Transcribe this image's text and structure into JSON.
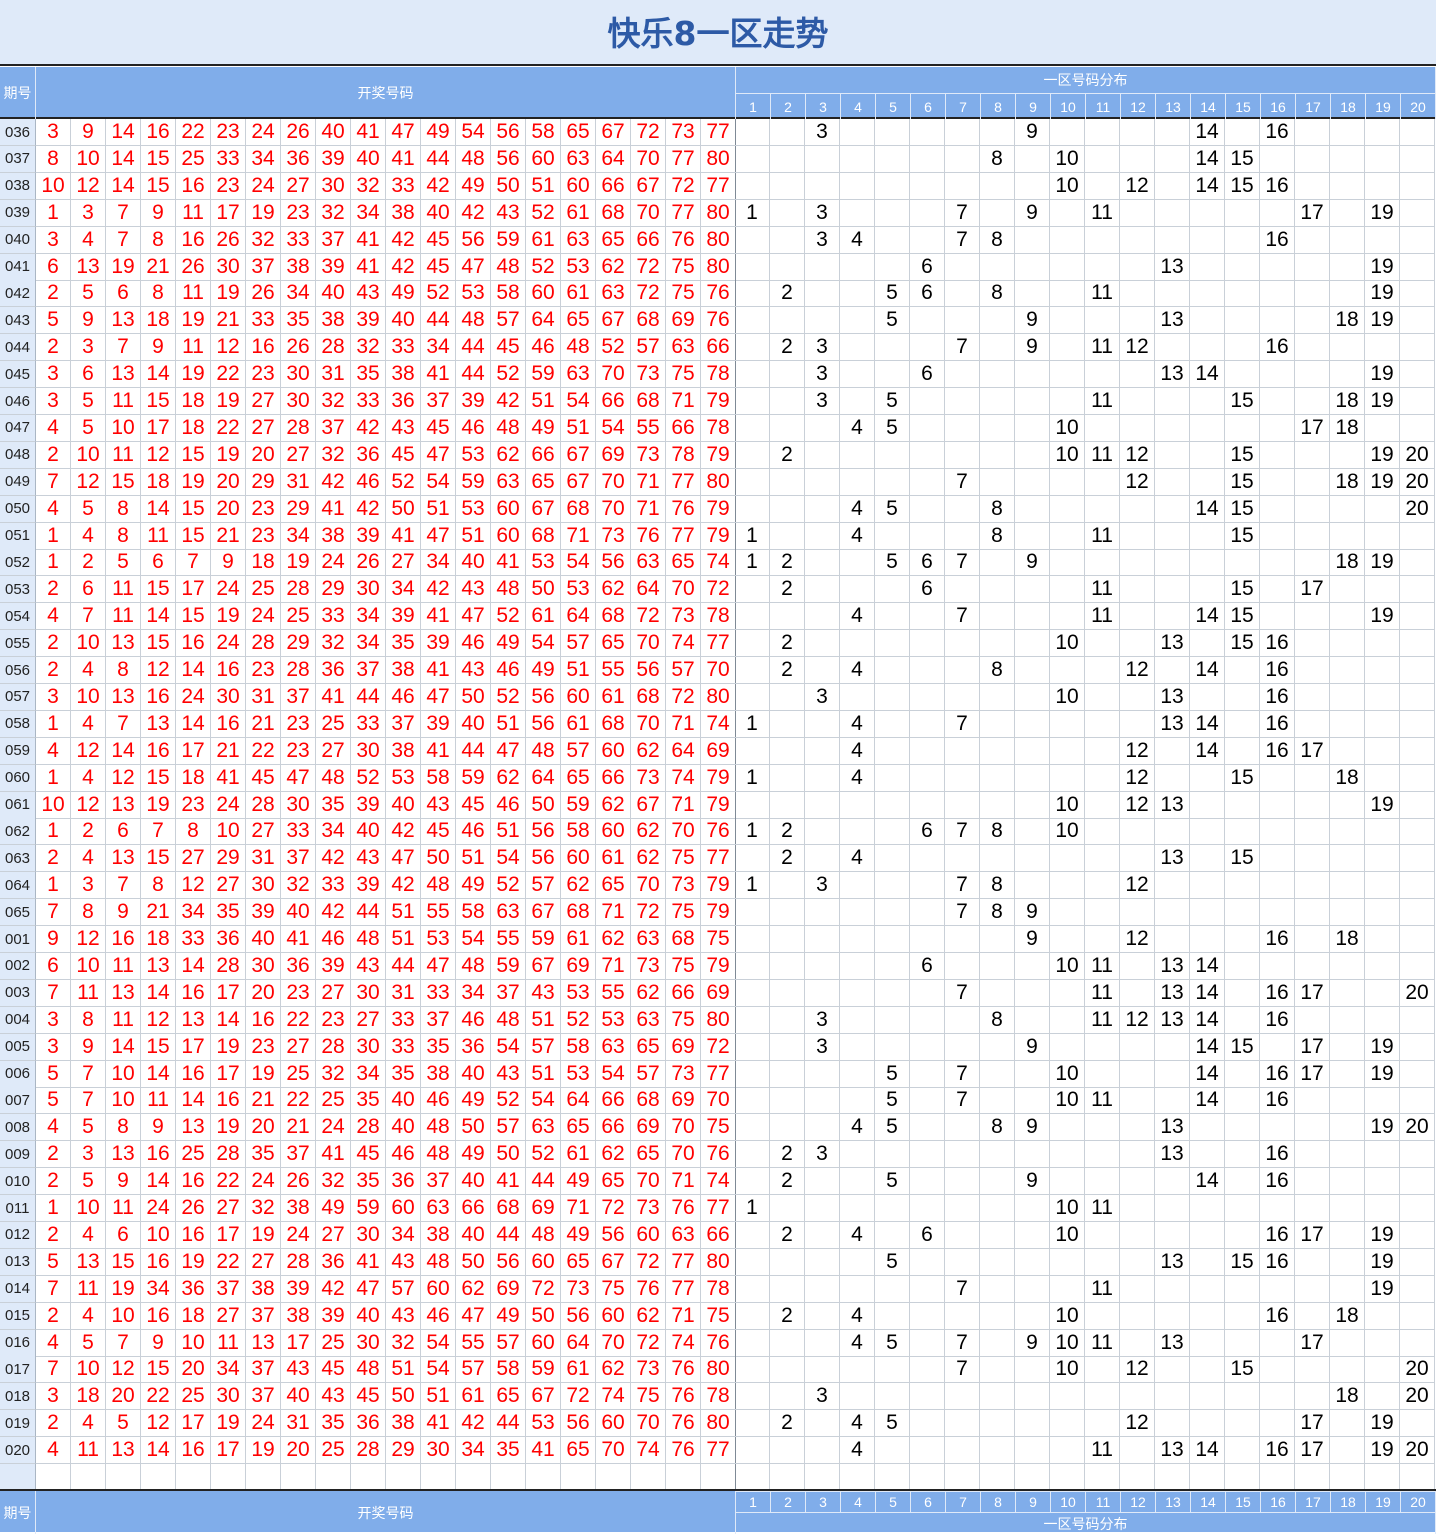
{
  "title": "快乐8一区走势",
  "header": {
    "period_label": "期号",
    "draw_label": "开奖号码",
    "dist_label": "一区号码分布",
    "dist_columns": [
      "1",
      "2",
      "3",
      "4",
      "5",
      "6",
      "7",
      "8",
      "9",
      "10",
      "11",
      "12",
      "13",
      "14",
      "15",
      "16",
      "17",
      "18",
      "19",
      "20"
    ]
  },
  "colors": {
    "draw_number": "#ff0000",
    "dist_number": "#000000",
    "header_bg": "#80adea",
    "title_text": "#2d5aa6",
    "title_bg": "#dfeaf9"
  },
  "rows": [
    {
      "period": "036",
      "numbers": [
        3,
        9,
        14,
        16,
        22,
        23,
        24,
        26,
        40,
        41,
        47,
        49,
        54,
        56,
        58,
        65,
        67,
        72,
        73,
        77
      ]
    },
    {
      "period": "037",
      "numbers": [
        8,
        10,
        14,
        15,
        25,
        33,
        34,
        36,
        39,
        40,
        41,
        44,
        48,
        56,
        60,
        63,
        64,
        70,
        77,
        80
      ]
    },
    {
      "period": "038",
      "numbers": [
        10,
        12,
        14,
        15,
        16,
        23,
        24,
        27,
        30,
        32,
        33,
        42,
        49,
        50,
        51,
        60,
        66,
        67,
        72,
        77
      ]
    },
    {
      "period": "039",
      "numbers": [
        1,
        3,
        7,
        9,
        11,
        17,
        19,
        23,
        32,
        34,
        38,
        40,
        42,
        43,
        52,
        61,
        68,
        70,
        77,
        80
      ]
    },
    {
      "period": "040",
      "numbers": [
        3,
        4,
        7,
        8,
        16,
        26,
        32,
        33,
        37,
        41,
        42,
        45,
        56,
        59,
        61,
        63,
        65,
        66,
        76,
        80
      ]
    },
    {
      "period": "041",
      "numbers": [
        6,
        13,
        19,
        21,
        26,
        30,
        37,
        38,
        39,
        41,
        42,
        45,
        47,
        48,
        52,
        53,
        62,
        72,
        75,
        80
      ]
    },
    {
      "period": "042",
      "numbers": [
        2,
        5,
        6,
        8,
        11,
        19,
        26,
        34,
        40,
        43,
        49,
        52,
        53,
        58,
        60,
        61,
        63,
        72,
        75,
        76
      ]
    },
    {
      "period": "043",
      "numbers": [
        5,
        9,
        13,
        18,
        19,
        21,
        33,
        35,
        38,
        39,
        40,
        44,
        48,
        57,
        64,
        65,
        67,
        68,
        69,
        76
      ]
    },
    {
      "period": "044",
      "numbers": [
        2,
        3,
        7,
        9,
        11,
        12,
        16,
        26,
        28,
        32,
        33,
        34,
        44,
        45,
        46,
        48,
        52,
        57,
        63,
        66
      ]
    },
    {
      "period": "045",
      "numbers": [
        3,
        6,
        13,
        14,
        19,
        22,
        23,
        30,
        31,
        35,
        38,
        41,
        44,
        52,
        59,
        63,
        70,
        73,
        75,
        78
      ]
    },
    {
      "period": "046",
      "numbers": [
        3,
        5,
        11,
        15,
        18,
        19,
        27,
        30,
        32,
        33,
        36,
        37,
        39,
        42,
        51,
        54,
        66,
        68,
        71,
        79
      ]
    },
    {
      "period": "047",
      "numbers": [
        4,
        5,
        10,
        17,
        18,
        22,
        27,
        28,
        37,
        42,
        43,
        45,
        46,
        48,
        49,
        51,
        54,
        55,
        66,
        78
      ]
    },
    {
      "period": "048",
      "numbers": [
        2,
        10,
        11,
        12,
        15,
        19,
        20,
        27,
        32,
        36,
        45,
        47,
        53,
        62,
        66,
        67,
        69,
        73,
        78,
        79
      ]
    },
    {
      "period": "049",
      "numbers": [
        7,
        12,
        15,
        18,
        19,
        20,
        29,
        31,
        42,
        46,
        52,
        54,
        59,
        63,
        65,
        67,
        70,
        71,
        77,
        80
      ]
    },
    {
      "period": "050",
      "numbers": [
        4,
        5,
        8,
        14,
        15,
        20,
        23,
        29,
        41,
        42,
        50,
        51,
        53,
        60,
        67,
        68,
        70,
        71,
        76,
        79
      ]
    },
    {
      "period": "051",
      "numbers": [
        1,
        4,
        8,
        11,
        15,
        21,
        23,
        34,
        38,
        39,
        41,
        47,
        51,
        60,
        68,
        71,
        73,
        76,
        77,
        79
      ]
    },
    {
      "period": "052",
      "numbers": [
        1,
        2,
        5,
        6,
        7,
        9,
        18,
        19,
        24,
        26,
        27,
        34,
        40,
        41,
        53,
        54,
        56,
        63,
        65,
        74
      ]
    },
    {
      "period": "053",
      "numbers": [
        2,
        6,
        11,
        15,
        17,
        24,
        25,
        28,
        29,
        30,
        34,
        42,
        43,
        48,
        50,
        53,
        62,
        64,
        70,
        72
      ]
    },
    {
      "period": "054",
      "numbers": [
        4,
        7,
        11,
        14,
        15,
        19,
        24,
        25,
        33,
        34,
        39,
        41,
        47,
        52,
        61,
        64,
        68,
        72,
        73,
        78
      ]
    },
    {
      "period": "055",
      "numbers": [
        2,
        10,
        13,
        15,
        16,
        24,
        28,
        29,
        32,
        34,
        35,
        39,
        46,
        49,
        54,
        57,
        65,
        70,
        74,
        77
      ]
    },
    {
      "period": "056",
      "numbers": [
        2,
        4,
        8,
        12,
        14,
        16,
        23,
        28,
        36,
        37,
        38,
        41,
        43,
        46,
        49,
        51,
        55,
        56,
        57,
        70
      ]
    },
    {
      "period": "057",
      "numbers": [
        3,
        10,
        13,
        16,
        24,
        30,
        31,
        37,
        41,
        44,
        46,
        47,
        50,
        52,
        56,
        60,
        61,
        68,
        72,
        80
      ]
    },
    {
      "period": "058",
      "numbers": [
        1,
        4,
        7,
        13,
        14,
        16,
        21,
        23,
        25,
        33,
        37,
        39,
        40,
        51,
        56,
        61,
        68,
        70,
        71,
        74
      ]
    },
    {
      "period": "059",
      "numbers": [
        4,
        12,
        14,
        16,
        17,
        21,
        22,
        23,
        27,
        30,
        38,
        41,
        44,
        47,
        48,
        57,
        60,
        62,
        64,
        69
      ]
    },
    {
      "period": "060",
      "numbers": [
        1,
        4,
        12,
        15,
        18,
        41,
        45,
        47,
        48,
        52,
        53,
        58,
        59,
        62,
        64,
        65,
        66,
        73,
        74,
        79
      ]
    },
    {
      "period": "061",
      "numbers": [
        10,
        12,
        13,
        19,
        23,
        24,
        28,
        30,
        35,
        39,
        40,
        43,
        45,
        46,
        50,
        59,
        62,
        67,
        71,
        79
      ]
    },
    {
      "period": "062",
      "numbers": [
        1,
        2,
        6,
        7,
        8,
        10,
        27,
        33,
        34,
        40,
        42,
        45,
        46,
        51,
        56,
        58,
        60,
        62,
        70,
        76
      ]
    },
    {
      "period": "063",
      "numbers": [
        2,
        4,
        13,
        15,
        27,
        29,
        31,
        37,
        42,
        43,
        47,
        50,
        51,
        54,
        56,
        60,
        61,
        62,
        75,
        77
      ]
    },
    {
      "period": "064",
      "numbers": [
        1,
        3,
        7,
        8,
        12,
        27,
        30,
        32,
        33,
        39,
        42,
        48,
        49,
        52,
        57,
        62,
        65,
        70,
        73,
        79
      ]
    },
    {
      "period": "065",
      "numbers": [
        7,
        8,
        9,
        21,
        34,
        35,
        39,
        40,
        42,
        44,
        51,
        55,
        58,
        63,
        67,
        68,
        71,
        72,
        75,
        79
      ]
    },
    {
      "period": "001",
      "numbers": [
        9,
        12,
        16,
        18,
        33,
        36,
        40,
        41,
        46,
        48,
        51,
        53,
        54,
        55,
        59,
        61,
        62,
        63,
        68,
        75
      ]
    },
    {
      "period": "002",
      "numbers": [
        6,
        10,
        11,
        13,
        14,
        28,
        30,
        36,
        39,
        43,
        44,
        47,
        48,
        59,
        67,
        69,
        71,
        73,
        75,
        79
      ]
    },
    {
      "period": "003",
      "numbers": [
        7,
        11,
        13,
        14,
        16,
        17,
        20,
        23,
        27,
        30,
        31,
        33,
        34,
        37,
        43,
        53,
        55,
        62,
        66,
        69
      ]
    },
    {
      "period": "004",
      "numbers": [
        3,
        8,
        11,
        12,
        13,
        14,
        16,
        22,
        23,
        27,
        33,
        37,
        46,
        48,
        51,
        52,
        53,
        63,
        75,
        80
      ]
    },
    {
      "period": "005",
      "numbers": [
        3,
        9,
        14,
        15,
        17,
        19,
        23,
        27,
        28,
        30,
        33,
        35,
        36,
        54,
        57,
        58,
        63,
        65,
        69,
        72
      ]
    },
    {
      "period": "006",
      "numbers": [
        5,
        7,
        10,
        14,
        16,
        17,
        19,
        25,
        32,
        34,
        35,
        38,
        40,
        43,
        51,
        53,
        54,
        57,
        73,
        77
      ]
    },
    {
      "period": "007",
      "numbers": [
        5,
        7,
        10,
        11,
        14,
        16,
        21,
        22,
        25,
        35,
        40,
        46,
        49,
        52,
        54,
        64,
        66,
        68,
        69,
        70
      ]
    },
    {
      "period": "008",
      "numbers": [
        4,
        5,
        8,
        9,
        13,
        19,
        20,
        21,
        24,
        28,
        40,
        48,
        50,
        57,
        63,
        65,
        66,
        69,
        70,
        75
      ]
    },
    {
      "period": "009",
      "numbers": [
        2,
        3,
        13,
        16,
        25,
        28,
        35,
        37,
        41,
        45,
        46,
        48,
        49,
        50,
        52,
        61,
        62,
        65,
        70,
        76
      ]
    },
    {
      "period": "010",
      "numbers": [
        2,
        5,
        9,
        14,
        16,
        22,
        24,
        26,
        32,
        35,
        36,
        37,
        40,
        41,
        44,
        49,
        65,
        70,
        71,
        74
      ]
    },
    {
      "period": "011",
      "numbers": [
        1,
        10,
        11,
        24,
        26,
        27,
        32,
        38,
        49,
        59,
        60,
        63,
        66,
        68,
        69,
        71,
        72,
        73,
        76,
        77
      ]
    },
    {
      "period": "012",
      "numbers": [
        2,
        4,
        6,
        10,
        16,
        17,
        19,
        24,
        27,
        30,
        34,
        38,
        40,
        44,
        48,
        49,
        56,
        60,
        63,
        66
      ]
    },
    {
      "period": "013",
      "numbers": [
        5,
        13,
        15,
        16,
        19,
        22,
        27,
        28,
        36,
        41,
        43,
        48,
        50,
        56,
        60,
        65,
        67,
        72,
        77,
        80
      ]
    },
    {
      "period": "014",
      "numbers": [
        7,
        11,
        19,
        34,
        36,
        37,
        38,
        39,
        42,
        47,
        57,
        60,
        62,
        69,
        72,
        73,
        75,
        76,
        77,
        78
      ]
    },
    {
      "period": "015",
      "numbers": [
        2,
        4,
        10,
        16,
        18,
        27,
        37,
        38,
        39,
        40,
        43,
        46,
        47,
        49,
        50,
        56,
        60,
        62,
        71,
        75
      ]
    },
    {
      "period": "016",
      "numbers": [
        4,
        5,
        7,
        9,
        10,
        11,
        13,
        17,
        25,
        30,
        32,
        54,
        55,
        57,
        60,
        64,
        70,
        72,
        74,
        76
      ]
    },
    {
      "period": "017",
      "numbers": [
        7,
        10,
        12,
        15,
        20,
        34,
        37,
        43,
        45,
        48,
        51,
        54,
        57,
        58,
        59,
        61,
        62,
        73,
        76,
        80
      ]
    },
    {
      "period": "018",
      "numbers": [
        3,
        18,
        20,
        22,
        25,
        30,
        37,
        40,
        43,
        45,
        50,
        51,
        61,
        65,
        67,
        72,
        74,
        75,
        76,
        78
      ]
    },
    {
      "period": "019",
      "numbers": [
        2,
        4,
        5,
        12,
        17,
        19,
        24,
        31,
        35,
        36,
        38,
        41,
        42,
        44,
        53,
        56,
        60,
        70,
        76,
        80
      ]
    },
    {
      "period": "020",
      "numbers": [
        4,
        11,
        13,
        14,
        16,
        17,
        19,
        20,
        25,
        28,
        29,
        30,
        34,
        35,
        41,
        65,
        70,
        74,
        76,
        77
      ]
    }
  ]
}
